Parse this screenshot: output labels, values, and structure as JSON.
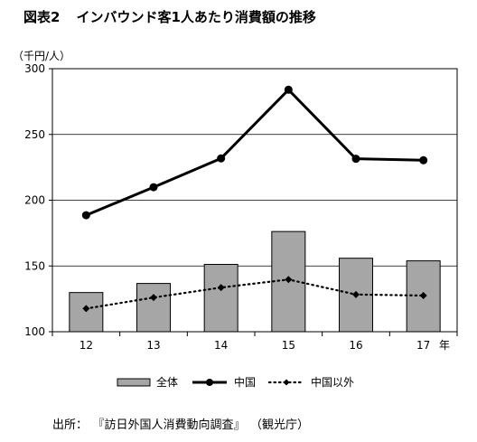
{
  "figure": {
    "number": "図表2",
    "title": "インバウンド客1人あたり消費額の推移",
    "unit_label": "（千円/人）",
    "source": {
      "label": "出所：",
      "title": "『訪日外国人消費動向調査』",
      "org": "（観光庁）"
    }
  },
  "chart_data": {
    "type": "bar",
    "title": "インバウンド客1人あたり消費額の推移",
    "categories": [
      "12",
      "13",
      "14",
      "15",
      "16",
      "17"
    ],
    "x_unit_label": "年",
    "ylabel": "（千円/人）",
    "ylim": [
      100,
      300
    ],
    "yticks": [
      100,
      150,
      200,
      250,
      300
    ],
    "grid": true,
    "legend_position": "bottom",
    "series": [
      {
        "name": "全体",
        "kind": "bar",
        "color": "#a6a6a6",
        "values": [
          129.8,
          136.7,
          151.2,
          176.2,
          155.9,
          153.9
        ]
      },
      {
        "name": "中国",
        "kind": "line-solid",
        "color": "#000000",
        "values": [
          188.6,
          209.9,
          231.8,
          284.0,
          231.5,
          230.4
        ]
      },
      {
        "name": "中国以外",
        "kind": "line-dotted",
        "color": "#000000",
        "values": [
          117.6,
          126.0,
          133.6,
          139.7,
          128.3,
          127.5
        ]
      }
    ]
  }
}
